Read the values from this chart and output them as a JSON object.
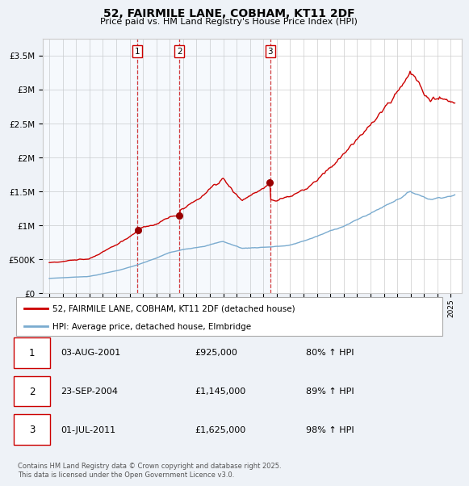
{
  "title": "52, FAIRMILE LANE, COBHAM, KT11 2DF",
  "subtitle": "Price paid vs. HM Land Registry's House Price Index (HPI)",
  "background_color": "#eef2f7",
  "plot_background_color": "#ffffff",
  "grid_color": "#cccccc",
  "red_color": "#cc0000",
  "blue_color": "#7aabcf",
  "transactions": [
    {
      "num": 1,
      "date": "03-AUG-2001",
      "year": 2001.59,
      "price": 925000,
      "hpi_pct": "80% ↑ HPI"
    },
    {
      "num": 2,
      "date": "23-SEP-2004",
      "year": 2004.73,
      "price": 1145000,
      "hpi_pct": "89% ↑ HPI"
    },
    {
      "num": 3,
      "date": "01-JUL-2011",
      "year": 2011.5,
      "price": 1625000,
      "hpi_pct": "98% ↑ HPI"
    }
  ],
  "legend_label_red": "52, FAIRMILE LANE, COBHAM, KT11 2DF (detached house)",
  "legend_label_blue": "HPI: Average price, detached house, Elmbridge",
  "footer": "Contains HM Land Registry data © Crown copyright and database right 2025.\nThis data is licensed under the Open Government Licence v3.0.",
  "ylim": [
    0,
    3750000
  ],
  "yticks": [
    0,
    500000,
    1000000,
    1500000,
    2000000,
    2500000,
    3000000,
    3500000
  ],
  "ytick_labels": [
    "£0",
    "£500K",
    "£1M",
    "£1.5M",
    "£2M",
    "£2.5M",
    "£3M",
    "£3.5M"
  ],
  "xlim_start": 1994.5,
  "xlim_end": 2025.8
}
